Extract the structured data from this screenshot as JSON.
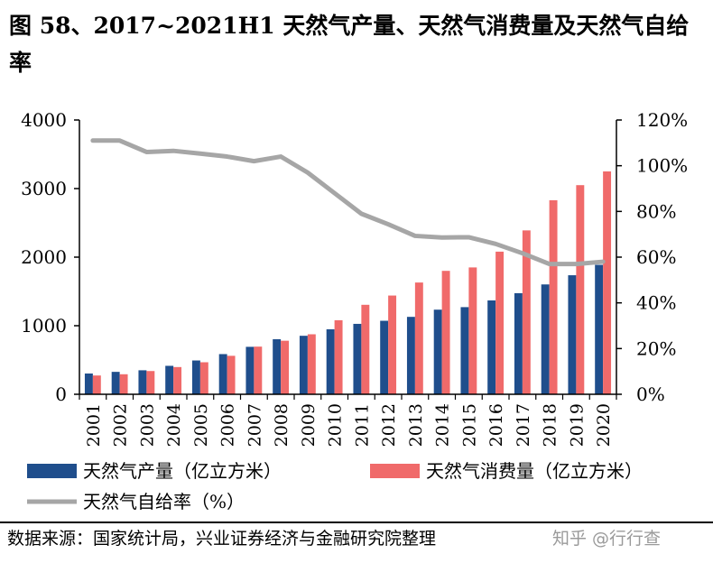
{
  "title": "图 58、2017~2021H1 天然气产量、天然气消费量及天然气自给率",
  "source": "数据来源：国家统计局，兴业证券经济与金融研究院整理",
  "watermark": "知乎 @行行查",
  "chart_data": {
    "type": "bar",
    "categories": [
      "2001",
      "2002",
      "2003",
      "2004",
      "2005",
      "2006",
      "2007",
      "2008",
      "2009",
      "2010",
      "2011",
      "2012",
      "2013",
      "2014",
      "2015",
      "2016",
      "2017",
      "2018",
      "2019",
      "2020"
    ],
    "series": [
      {
        "name": "天然气产量（亿立方米）",
        "type": "bar",
        "axis": "left",
        "color": "#1f4e8c",
        "values": [
          303,
          327,
          350,
          415,
          493,
          586,
          692,
          803,
          853,
          948,
          1027,
          1072,
          1129,
          1234,
          1271,
          1369,
          1474,
          1602,
          1736,
          1888
        ]
      },
      {
        "name": "天然气消费量（亿立方米）",
        "type": "bar",
        "axis": "left",
        "color": "#f06a6a",
        "values": [
          274,
          292,
          339,
          397,
          467,
          561,
          695,
          781,
          875,
          1080,
          1305,
          1440,
          1630,
          1800,
          1850,
          2080,
          2390,
          2830,
          3050,
          3250
        ]
      },
      {
        "name": "天然气自给率（%）",
        "type": "line",
        "axis": "right",
        "color": "#a6a6a6",
        "values": [
          111,
          111,
          106,
          106.5,
          105.3,
          104,
          102,
          104,
          97,
          88,
          79,
          74.4,
          69.3,
          68.6,
          68.7,
          65.8,
          61.7,
          57,
          57,
          58
        ]
      }
    ],
    "y_left": {
      "ylim": [
        0,
        4000
      ],
      "ticks": [
        "0",
        "1000",
        "2000",
        "3000",
        "4000"
      ],
      "tick_values": [
        0,
        1000,
        2000,
        3000,
        4000
      ]
    },
    "y_right": {
      "ylim": [
        0,
        120
      ],
      "ticks": [
        "0%",
        "20%",
        "40%",
        "60%",
        "80%",
        "100%",
        "120%"
      ],
      "tick_values": [
        0,
        20,
        40,
        60,
        80,
        100,
        120
      ]
    },
    "legend_position": "bottom",
    "grid": false
  }
}
